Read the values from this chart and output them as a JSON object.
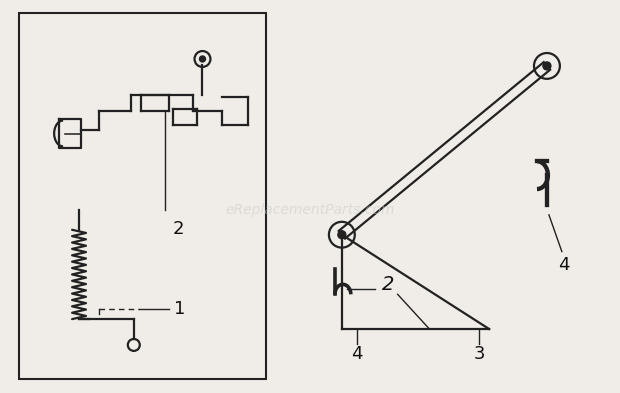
{
  "bg_color": "#f0ede8",
  "line_color": "#222222",
  "text_color": "#111111",
  "watermark_color": "#c8c8c8",
  "watermark_text": "eReplacementParts.com",
  "figsize": [
    6.2,
    3.93
  ],
  "dpi": 100
}
